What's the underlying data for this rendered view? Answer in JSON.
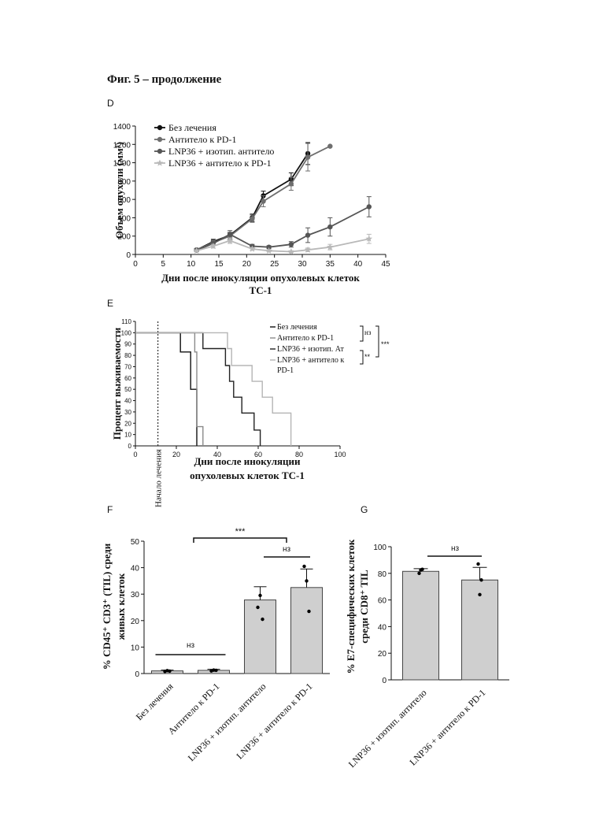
{
  "page_title": "Фиг. 5 – продолжение",
  "panels": {
    "d": "D",
    "e": "E",
    "f": "F",
    "g": "G"
  },
  "chart_data": [
    {
      "panel": "D",
      "type": "line",
      "xlabel": "Дни после инокуляции опухолевых клеток ТС-1",
      "ylabel": "Объем опухоли (мм³)",
      "xlim": [
        0,
        45
      ],
      "ylim": [
        0,
        1400
      ],
      "xticks": [
        0,
        5,
        10,
        15,
        20,
        25,
        30,
        35,
        40,
        45
      ],
      "yticks": [
        0,
        200,
        400,
        600,
        800,
        1000,
        1200,
        1400
      ],
      "legend_position": "top-left",
      "series": [
        {
          "name": "Без лечения",
          "color": "#111111",
          "marker": "circle",
          "x": [
            11,
            14,
            17,
            21,
            23,
            28,
            31
          ],
          "y": [
            50,
            140,
            210,
            400,
            640,
            820,
            1100
          ],
          "err": [
            15,
            25,
            30,
            40,
            50,
            70,
            120
          ]
        },
        {
          "name": "Антитело к PD-1",
          "color": "#6e6e6e",
          "marker": "circle",
          "x": [
            11,
            14,
            17,
            21,
            23,
            28,
            31,
            35
          ],
          "y": [
            50,
            130,
            200,
            390,
            580,
            770,
            1060,
            1180
          ],
          "err": [
            15,
            25,
            30,
            40,
            60,
            70,
            150,
            0
          ]
        },
        {
          "name": "LNP36 + изотип. антитело",
          "color": "#555555",
          "marker": "circle",
          "x": [
            11,
            14,
            17,
            21,
            24,
            28,
            31,
            35,
            42
          ],
          "y": [
            45,
            120,
            220,
            90,
            80,
            110,
            210,
            300,
            520
          ],
          "err": [
            10,
            20,
            40,
            20,
            15,
            30,
            80,
            100,
            110
          ]
        },
        {
          "name": "LNP36 + антитело к PD-1",
          "color": "#b9b9b9",
          "marker": "star",
          "x": [
            11,
            14,
            17,
            21,
            24,
            28,
            31,
            35,
            42
          ],
          "y": [
            40,
            90,
            150,
            60,
            40,
            30,
            50,
            80,
            170
          ],
          "err": [
            10,
            20,
            30,
            15,
            10,
            10,
            20,
            30,
            50
          ]
        }
      ]
    },
    {
      "panel": "E",
      "type": "line",
      "xlabel": "Дни после инокуляции опухолевых клеток ТС-1",
      "ylabel": "Процент выживаемости",
      "xlim": [
        0,
        100
      ],
      "ylim": [
        0,
        110
      ],
      "xticks": [
        0,
        20,
        40,
        60,
        80,
        100
      ],
      "yticks": [
        0,
        10,
        20,
        30,
        40,
        50,
        60,
        70,
        80,
        90,
        100,
        110
      ],
      "treatment_start_day": 11,
      "treatment_start_label": "Начало лечения",
      "legend_position": "top-right",
      "series": [
        {
          "name": "Без лечения",
          "color": "#111111",
          "style": "solid",
          "steps": [
            [
              0,
              100
            ],
            [
              22,
              100
            ],
            [
              22,
              83
            ],
            [
              27,
              83
            ],
            [
              27,
              50
            ],
            [
              30,
              50
            ],
            [
              30,
              0
            ]
          ]
        },
        {
          "name": "Антитело к PD-1",
          "color": "#8a8a8a",
          "style": "solid",
          "steps": [
            [
              0,
              100
            ],
            [
              29,
              100
            ],
            [
              29,
              83
            ],
            [
              30,
              83
            ],
            [
              30,
              17
            ],
            [
              33,
              17
            ],
            [
              33,
              0
            ]
          ]
        },
        {
          "name": "LNP36 + изотип. Ат",
          "color": "#222222",
          "style": "solid",
          "steps": [
            [
              0,
              100
            ],
            [
              33,
              100
            ],
            [
              33,
              86
            ],
            [
              44,
              86
            ],
            [
              44,
              71
            ],
            [
              46,
              71
            ],
            [
              46,
              57
            ],
            [
              48,
              57
            ],
            [
              48,
              43
            ],
            [
              52,
              43
            ],
            [
              52,
              29
            ],
            [
              58,
              29
            ],
            [
              58,
              14
            ],
            [
              61,
              14
            ],
            [
              61,
              0
            ]
          ]
        },
        {
          "name": "LNP36 + антитело к PD-1",
          "color": "#b5b5b5",
          "style": "solid",
          "steps": [
            [
              0,
              100
            ],
            [
              45,
              100
            ],
            [
              45,
              86
            ],
            [
              47,
              86
            ],
            [
              47,
              71
            ],
            [
              57,
              71
            ],
            [
              57,
              57
            ],
            [
              62,
              57
            ],
            [
              62,
              43
            ],
            [
              67,
              43
            ],
            [
              67,
              29
            ],
            [
              76,
              29
            ],
            [
              76,
              0
            ]
          ]
        }
      ],
      "significance": [
        {
          "label": "нз"
        },
        {
          "label": "***"
        },
        {
          "label": "**"
        }
      ]
    },
    {
      "panel": "F",
      "type": "bar",
      "ylabel": "% CD45⁺ CD3⁺ (TIL) среди живых клеток",
      "ylim": [
        0,
        50
      ],
      "yticks": [
        0,
        10,
        20,
        30,
        40,
        50
      ],
      "categories": [
        "Без лечения",
        "Антитело к PD-1",
        "LNP36 + изотип. антитело",
        "LNP36 + антитело к PD-1"
      ],
      "values": [
        1.0,
        1.2,
        27.8,
        32.5
      ],
      "errors": [
        0.3,
        0.4,
        5.0,
        7.0
      ],
      "points": [
        [
          0.8,
          1.1,
          0.9
        ],
        [
          1.0,
          1.3,
          1.2
        ],
        [
          25.0,
          29.5,
          20.5
        ],
        [
          40.5,
          35.0,
          23.5
        ]
      ],
      "significance": [
        {
          "label": "нз"
        },
        {
          "label": "***"
        },
        {
          "label": "нз"
        }
      ]
    },
    {
      "panel": "G",
      "type": "bar",
      "ylabel": "% Е7-специфических клеток среди CD8⁺ TIL",
      "ylim": [
        0,
        100
      ],
      "yticks": [
        0,
        20,
        40,
        60,
        80,
        100
      ],
      "categories": [
        "LNP36 + изотип. антитело",
        "LNP36 + антитело к PD-1"
      ],
      "values": [
        81.5,
        75.0
      ],
      "errors": [
        2.0,
        9.5
      ],
      "points": [
        [
          80.0,
          82.5,
          83.0
        ],
        [
          87.0,
          64.0,
          75.0
        ]
      ],
      "significance": [
        {
          "label": "нз"
        }
      ]
    }
  ]
}
